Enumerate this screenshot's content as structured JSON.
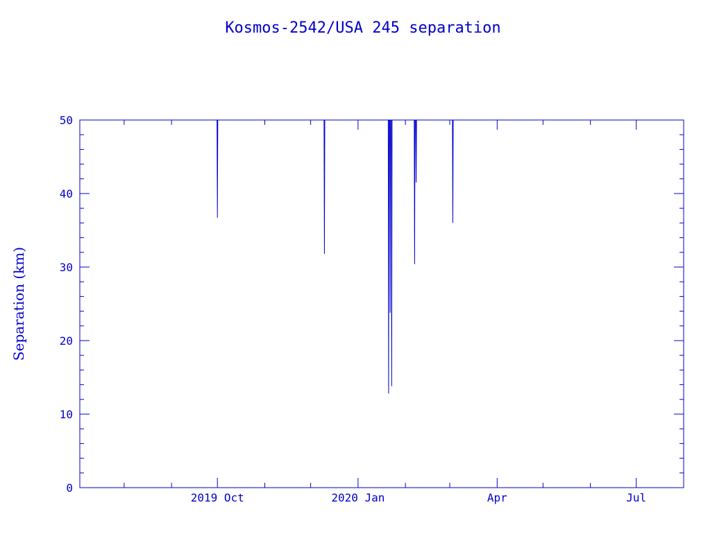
{
  "chart_data": {
    "type": "line",
    "title": "Kosmos-2542/USA 245 separation",
    "xlabel": "",
    "ylabel": "Separation (km)",
    "x_ticks": [
      {
        "label": "2019 Oct",
        "date": "2019-10-01"
      },
      {
        "label": "2020 Jan",
        "date": "2020-01-01"
      },
      {
        "label": "Apr",
        "date": "2020-04-01"
      },
      {
        "label": "Jul",
        "date": "2020-07-01"
      }
    ],
    "xlim": [
      "2019-07-03",
      "2020-08-01"
    ],
    "ylim": [
      0,
      50
    ],
    "y_ticks": [
      0,
      10,
      20,
      30,
      40,
      50
    ],
    "series": [
      {
        "color": "#0000cc",
        "dips": [
          {
            "date": "2019-10-01",
            "min_km": 36.7
          },
          {
            "date": "2019-12-10",
            "min_km": 31.8
          },
          {
            "date": "2020-01-21",
            "min_km": 12.8
          },
          {
            "date": "2020-01-22",
            "min_km": 23.8
          },
          {
            "date": "2020-01-23",
            "min_km": 13.8
          },
          {
            "date": "2020-02-07",
            "min_km": 30.4
          },
          {
            "date": "2020-02-08",
            "min_km": 41.5
          },
          {
            "date": "2020-03-03",
            "min_km": 36.0
          }
        ]
      }
    ],
    "grid": false
  }
}
